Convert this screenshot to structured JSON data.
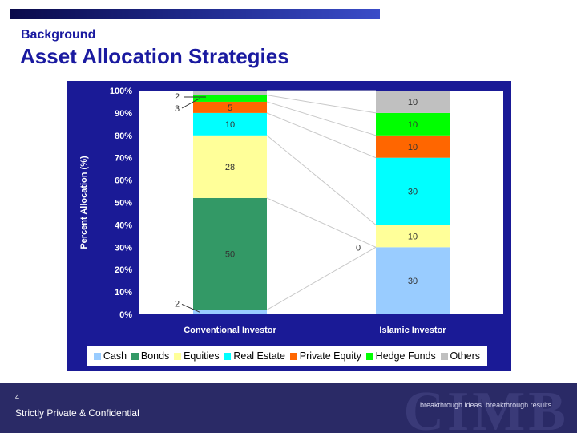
{
  "slide": {
    "subtitle": "Background",
    "title": "Asset Allocation Strategies",
    "page_number": "4",
    "confidential": "Strictly Private & Confidential",
    "tagline": "breakthrough ideas. breakthrough results.",
    "footer_mark": "CIMB"
  },
  "chart_data": {
    "type": "bar",
    "stacked": true,
    "title": "",
    "xlabel": "",
    "ylabel": "Percent Allocation (%)",
    "ylim": [
      0,
      100
    ],
    "yticks": [
      "0%",
      "10%",
      "20%",
      "30%",
      "40%",
      "50%",
      "60%",
      "70%",
      "80%",
      "90%",
      "100%"
    ],
    "categories": [
      "Conventional Investor",
      "Islamic Investor"
    ],
    "series": [
      {
        "name": "Cash",
        "color": "#99ccff",
        "values": [
          2,
          30
        ],
        "labels": [
          "2",
          "30"
        ]
      },
      {
        "name": "Bonds",
        "color": "#339966",
        "values": [
          50,
          0
        ],
        "labels": [
          "50",
          "0"
        ]
      },
      {
        "name": "Equities",
        "color": "#ffff99",
        "values": [
          28,
          10
        ],
        "labels": [
          "28",
          "10"
        ]
      },
      {
        "name": "Real Estate",
        "color": "#00ffff",
        "values": [
          10,
          30
        ],
        "labels": [
          "10",
          "30"
        ]
      },
      {
        "name": "Private Equity",
        "color": "#ff6600",
        "values": [
          5,
          10
        ],
        "labels": [
          "5",
          "10"
        ]
      },
      {
        "name": "Hedge Funds",
        "color": "#00ff00",
        "values": [
          3,
          10
        ],
        "labels": [
          "3",
          "10"
        ]
      },
      {
        "name": "Others",
        "color": "#c0c0c0",
        "values": [
          2,
          10
        ],
        "labels": [
          "2",
          "10"
        ]
      }
    ],
    "legend_position": "bottom",
    "grid": false
  }
}
